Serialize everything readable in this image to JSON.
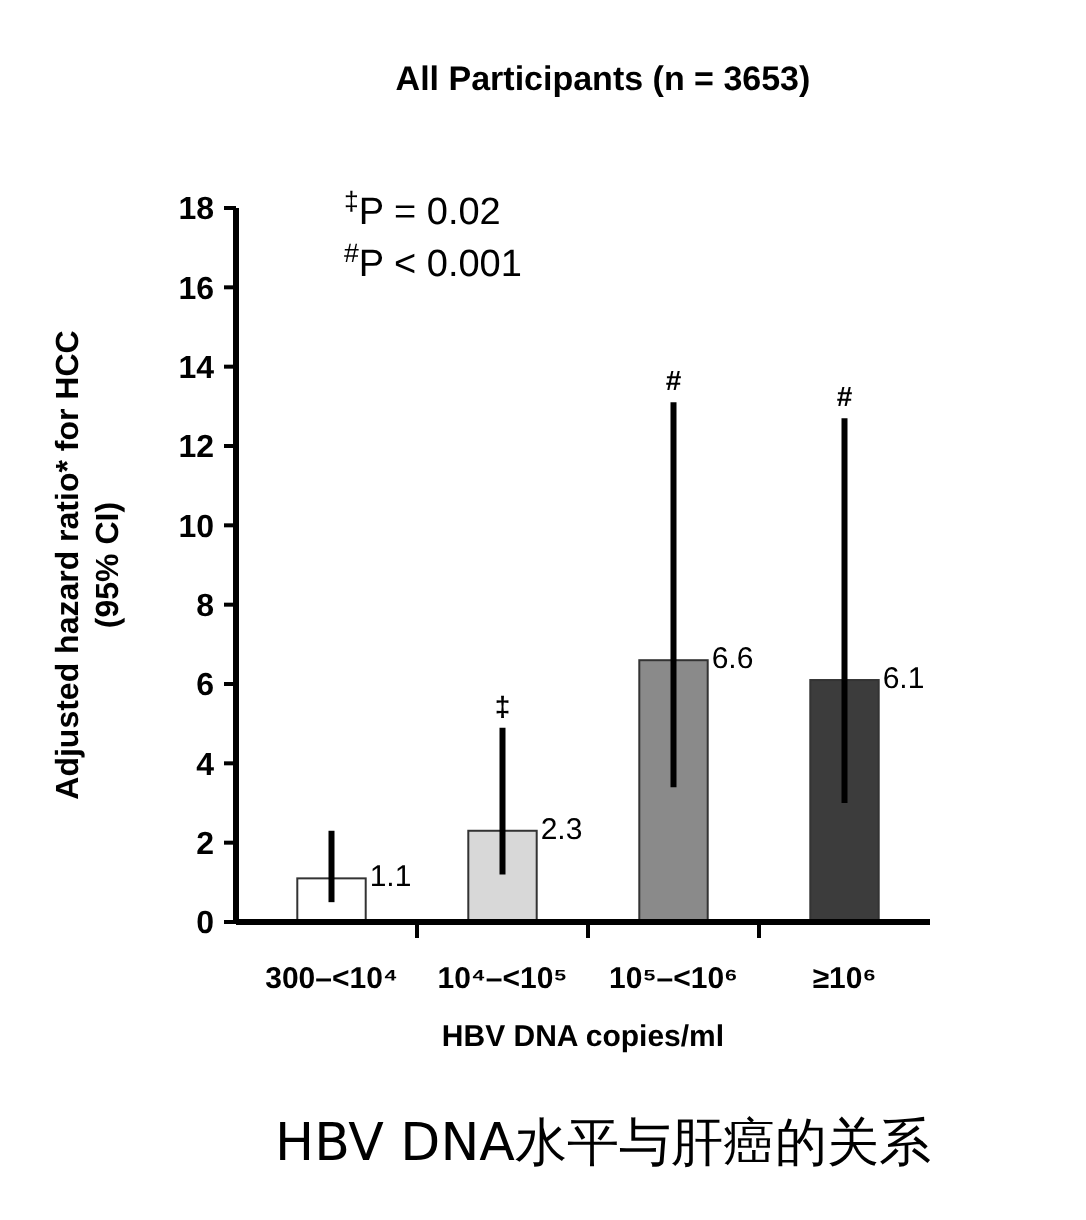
{
  "chart_data": {
    "type": "bar",
    "title": "All Participants (n = 3653)",
    "xlabel": "HBV DNA copies/ml",
    "ylabel": "Adjusted hazard ratio* for HCC (95% CI)",
    "categories": [
      "300–<10⁴",
      "10⁴–<10⁵",
      "10⁵–<10⁶",
      "≥10⁶"
    ],
    "values": [
      1.1,
      2.3,
      6.6,
      6.1
    ],
    "colors": [
      "#ffffff",
      "#d8d8d8",
      "#8a8a8a",
      "#3c3c3c"
    ],
    "errors": [
      [
        0.5,
        2.3
      ],
      [
        1.2,
        4.9
      ],
      [
        3.4,
        13.1
      ],
      [
        3.0,
        12.7
      ]
    ],
    "data_labels": true,
    "ylim": [
      0,
      18
    ],
    "yticks": [
      0,
      2,
      4,
      6,
      8,
      10,
      12,
      14,
      16,
      18
    ],
    "grid": false,
    "annotations": [
      "$^{‡}$P = 0.02",
      "$^{#}$P < 0.001",
      {
        "text": "‡",
        "x": "10⁴–<10⁵",
        "y": 4.9
      },
      {
        "text": "#",
        "x": "10⁵–<10⁶",
        "y": 13.1
      },
      {
        "text": "#",
        "x": "≥10⁶",
        "y": 12.7
      },
      "HBV DNA水平与肝癌的关系"
    ]
  }
}
